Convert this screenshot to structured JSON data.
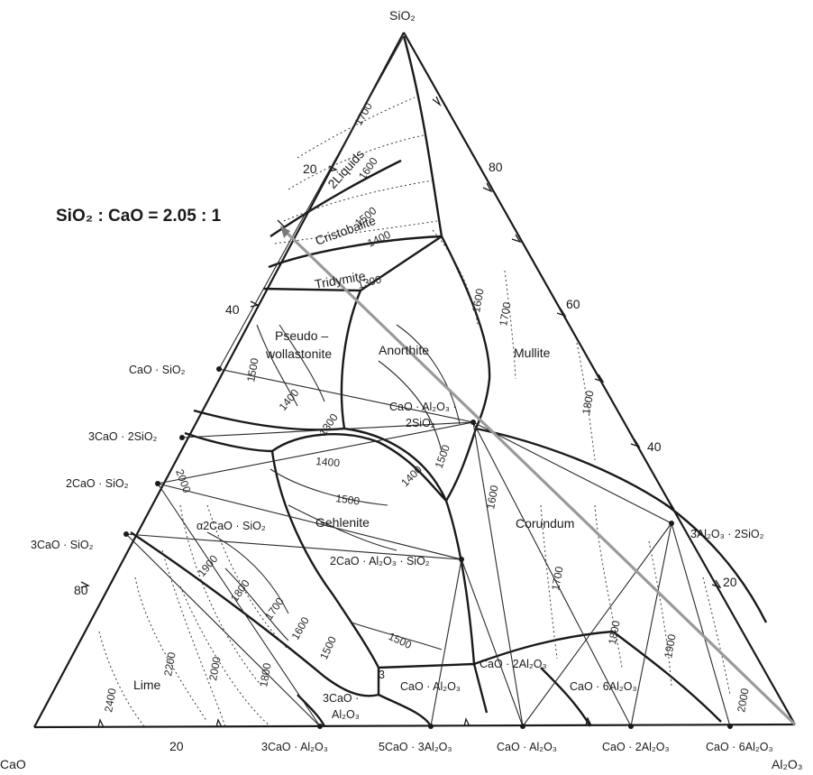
{
  "vertices": {
    "top": "SiO₂",
    "left": "CaO",
    "right": "Al₂O₃"
  },
  "ratio_annotation": "SiO₂ : CaO = 2.05 : 1",
  "left_edge_ticks": [
    "20",
    "40",
    "80"
  ],
  "right_edge_ticks": [
    "80",
    "60",
    "40",
    "20"
  ],
  "bottom_edge_ticks": [
    "20"
  ],
  "compound_labels": {
    "cao_sio2": "CaO · SiO₂",
    "c3s2": "3CaO · 2SiO₂",
    "c2s": "2CaO · SiO₂",
    "c3s": "3CaO · SiO₂",
    "c3a": "3CaO · Al₂O₃",
    "c5a3": "5CaO · 3Al₂O₃",
    "ca": "CaO · Al₂O₃",
    "ca2": "CaO · 2Al₂O₃",
    "ca6": "CaO · 6Al₂O₃",
    "a3s2": "3Al₂O₃ · 2SiO₂"
  },
  "phase_fields": {
    "two_liquids": "2Liquids",
    "cristobalite": "Cristobalite",
    "tridymite": "Tridymite",
    "pseudo1": "Pseudo –",
    "pseudo2": "wollastonite",
    "anorthite": "Anorthite",
    "anorthite_formula1": "CaO · Al₂O₃ ·",
    "anorthite_formula2": "2SiO₂",
    "mullite": "Mullite",
    "gehlenite": "Gehlenite",
    "gehlenite_formula": "2CaO · Al₂O₃ · SiO₂",
    "c2s_field": "α2CaO · SiO₂",
    "corundum": "Corundum",
    "lime": "Lime",
    "c3a_field_1": "3CaO ·",
    "c3a_field_2": "Al₂O₃",
    "ca_field": "CaO · Al₂O₃",
    "ca2_field": "CaO · 2Al₂O₃",
    "ca6_field": "CaO · 6Al₂O₃",
    "small_field": "3"
  },
  "isotherms": {
    "t1700_top": "1700",
    "t1600_top": "1600",
    "t1500_top": "1500",
    "t1400_top": "1400",
    "t1300_top": "1300",
    "t1500_wol": "1500",
    "t1400_wol": "1400",
    "t1300_an": "1300",
    "t1600_an": "1600",
    "t1700_mul": "1700",
    "t1800_mul": "1800",
    "t1500_an": "1500",
    "t1400_an": "1400",
    "t1600_cor": "1600",
    "t1700_cor": "1700",
    "t1800_cor": "1800",
    "t1900_cor": "1900",
    "t2000_cor": "2000",
    "t1400_geh": "1400",
    "t1500_geh": "1500",
    "t1500_geh2": "1500",
    "t2000_c2s": "2000",
    "t1900_c2s": "1900",
    "t1800_c2s": "1800",
    "t1700_c2s": "1700",
    "t1600_c2s": "1600",
    "t1500_c2s": "1500",
    "t2400_lime": "2400",
    "t2200_lime": "2200",
    "t2000_lime": "2000",
    "t1800_lime": "1800"
  }
}
